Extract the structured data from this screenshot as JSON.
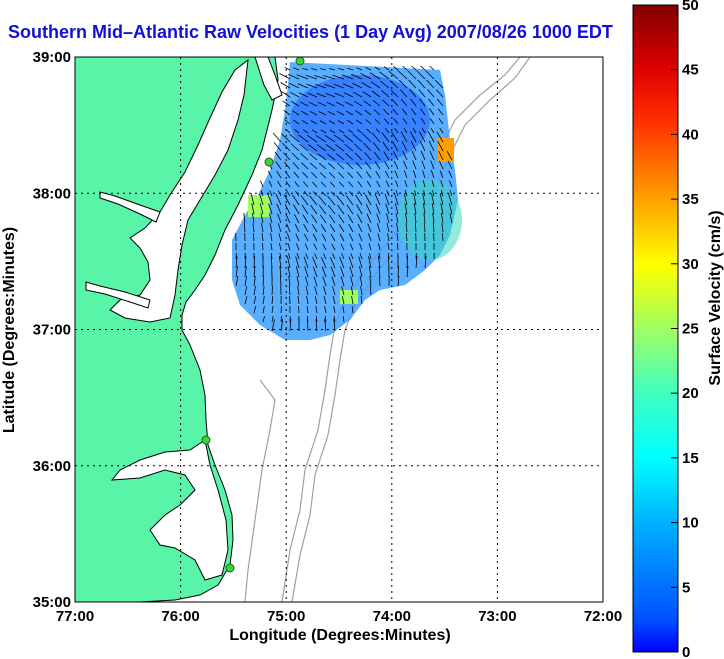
{
  "title": "Southern Mid–Atlantic Raw Velocities (1 Day Avg) 2007/08/26 1000 EDT",
  "map": {
    "x_label": "Longitude (Degrees:Minutes)",
    "y_label": "Latitude (Degrees:Minutes)",
    "x_ticks": [
      "77:00",
      "76:00",
      "75:00",
      "74:00",
      "73:00",
      "72:00"
    ],
    "y_ticks": [
      "39:00",
      "38:00",
      "37:00",
      "36:00",
      "35:00"
    ],
    "lon_range": [
      -77,
      -72
    ],
    "lat_range": [
      35,
      39
    ],
    "grid": "dotted",
    "land_color": "#58f5a8",
    "coast_color": "#000000",
    "bathymetry_color": "#a0a0a0",
    "station_color": "#3cd23c"
  },
  "colorbar": {
    "label": "Surface Velocity (cm/s)",
    "ticks": [
      "0",
      "5",
      "10",
      "15",
      "20",
      "25",
      "30",
      "35",
      "40",
      "45",
      "50"
    ],
    "range": [
      0,
      50
    ],
    "colormap": "jet"
  }
}
